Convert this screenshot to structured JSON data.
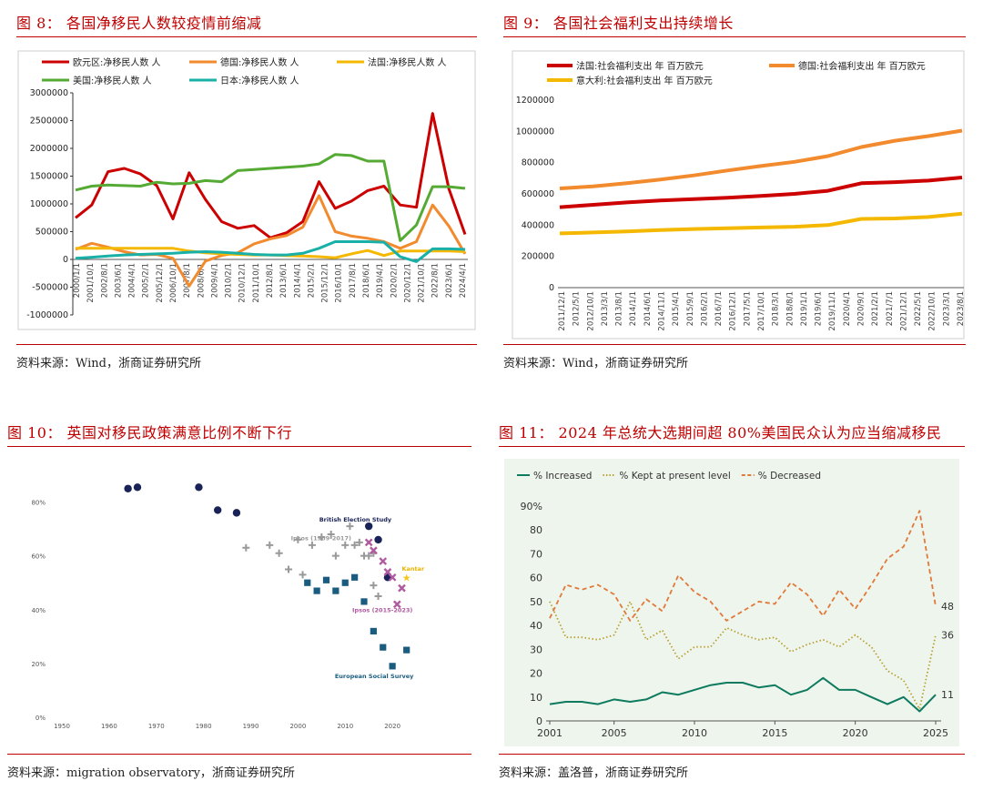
{
  "figure8": {
    "title": "图 8： 各国净移民人数较疫情前缩减",
    "source": "资料来源：Wind，浙商证券研究所",
    "chart_data": {
      "type": "line",
      "title": "",
      "ylim": [
        -1000000,
        3000000
      ],
      "y_ticks": [
        "3000000",
        "2500000",
        "2000000",
        "1500000",
        "1000000",
        "500000",
        "0",
        "-500000",
        "-1000000"
      ],
      "y_tick_values": [
        3000000,
        2500000,
        2000000,
        1500000,
        1000000,
        500000,
        0,
        -500000,
        -1000000
      ],
      "x_tick_labels": [
        "2000/1/1",
        "2001/10/1",
        "2002/8/1",
        "2003/6/1",
        "2004/4/1",
        "2005/2/1",
        "2005/12/1",
        "2006/10/1",
        "2007/8/1",
        "2008/6/1",
        "2009/4/1",
        "2010/2/1",
        "2010/12/1",
        "2011/10/1",
        "2012/8/1",
        "2013/6/1",
        "2014/4/1",
        "2015/2/1",
        "2015/12/1",
        "2016/10/1",
        "2017/8/1",
        "2018/6/1",
        "2019/4/1",
        "2020/2/1",
        "2020/12/1",
        "2021/10/1",
        "2022/8/1",
        "2023/6/1",
        "2024/4/1"
      ],
      "x": [
        2000,
        2001,
        2002,
        2003,
        2004,
        2005,
        2006,
        2007,
        2008,
        2009,
        2010,
        2011,
        2012,
        2013,
        2014,
        2015,
        2016,
        2017,
        2018,
        2019,
        2020,
        2021,
        2022,
        2023,
        2024
      ],
      "series": [
        {
          "name": "欧元区:净移民人数 人",
          "color": "#cc0000",
          "values": [
            750000,
            980000,
            1580000,
            1640000,
            1540000,
            1330000,
            730000,
            1560000,
            1080000,
            680000,
            560000,
            610000,
            390000,
            480000,
            680000,
            1400000,
            920000,
            1050000,
            1240000,
            1320000,
            980000,
            940000,
            2630000,
            1270000,
            450000
          ]
        },
        {
          "name": "德国:净移民人数 人",
          "color": "#f28a2e",
          "values": [
            180000,
            290000,
            220000,
            140000,
            80000,
            90000,
            20000,
            -480000,
            -30000,
            70000,
            120000,
            280000,
            370000,
            430000,
            580000,
            1150000,
            500000,
            420000,
            380000,
            320000,
            200000,
            320000,
            980000,
            600000,
            100000
          ]
        },
        {
          "name": "法国:净移民人数 人",
          "color": "#f5b800",
          "values": [
            200000,
            200000,
            200000,
            200000,
            200000,
            200000,
            200000,
            150000,
            120000,
            100000,
            90000,
            80000,
            80000,
            70000,
            60000,
            50000,
            30000,
            100000,
            160000,
            70000,
            150000,
            150000,
            150000,
            150000,
            140000
          ]
        },
        {
          "name": "美国:净移民人数 人",
          "color": "#55aa33",
          "values": [
            1250000,
            1320000,
            1340000,
            1330000,
            1320000,
            1390000,
            1360000,
            1370000,
            1420000,
            1400000,
            1600000,
            1620000,
            1640000,
            1660000,
            1680000,
            1720000,
            1890000,
            1870000,
            1770000,
            1770000,
            340000,
            620000,
            1310000,
            1310000,
            1280000
          ]
        },
        {
          "name": "日本:净移民人数 人",
          "color": "#19b0a8",
          "values": [
            20000,
            40000,
            60000,
            80000,
            90000,
            100000,
            110000,
            130000,
            140000,
            130000,
            110000,
            90000,
            80000,
            80000,
            110000,
            200000,
            320000,
            320000,
            320000,
            310000,
            50000,
            -40000,
            190000,
            190000,
            180000
          ]
        }
      ]
    }
  },
  "figure9": {
    "title": "图 9： 各国社会福利支出持续增长",
    "source": "资料来源：Wind，浙商证券研究所",
    "chart_data": {
      "type": "line",
      "ylim": [
        0,
        1200000
      ],
      "y_ticks": [
        "1200000",
        "1000000",
        "800000",
        "600000",
        "400000",
        "200000",
        "0"
      ],
      "y_tick_values": [
        1200000,
        1000000,
        800000,
        600000,
        400000,
        200000,
        0
      ],
      "x_tick_labels": [
        "2011/12/1",
        "2012/5/1",
        "2012/10/1",
        "2013/3/1",
        "2013/8/1",
        "2014/1/1",
        "2014/6/1",
        "2014/11/1",
        "2015/4/1",
        "2015/9/1",
        "2016/2/1",
        "2016/7/1",
        "2016/12/1",
        "2017/5/1",
        "2017/10/1",
        "2018/3/1",
        "2018/8/1",
        "2019/1/1",
        "2019/6/1",
        "2019/11/1",
        "2020/4/1",
        "2020/9/1",
        "2021/2/1",
        "2021/7/1",
        "2021/12/1",
        "2022/5/1",
        "2022/10/1",
        "2023/3/1",
        "2023/8/1"
      ],
      "x": [
        2012,
        2013,
        2014,
        2015,
        2016,
        2017,
        2018,
        2019,
        2020,
        2021,
        2022,
        2023,
        2024
      ],
      "series": [
        {
          "name": "法国:社会福利支出 年 百万欧元",
          "color": "#cc0000",
          "values": [
            515000,
            530000,
            545000,
            558000,
            567000,
            575000,
            587000,
            600000,
            620000,
            668000,
            675000,
            685000,
            705000
          ]
        },
        {
          "name": "德国:社会福利支出 年 百万欧元",
          "color": "#f28a2e",
          "values": [
            635000,
            648000,
            668000,
            692000,
            718000,
            750000,
            778000,
            805000,
            842000,
            900000,
            940000,
            970000,
            1005000
          ]
        },
        {
          "name": "意大利:社会福利支出 年 百万欧元",
          "color": "#f5b800",
          "values": [
            347000,
            353000,
            360000,
            368000,
            375000,
            380000,
            385000,
            390000,
            400000,
            440000,
            443000,
            452000,
            473000
          ]
        }
      ]
    }
  },
  "figure10": {
    "title": "图 10： 英国对移民政策满意比例不断下行",
    "source": "资料来源：migration observatory，浙商证券研究所",
    "chart_data": {
      "type": "scatter",
      "ylim": [
        0,
        90
      ],
      "xlim": [
        1950,
        2030
      ],
      "y_ticks": [
        "80%",
        "60%",
        "40%",
        "20%",
        "0%"
      ],
      "y_tick_values": [
        80,
        60,
        40,
        20,
        0
      ],
      "x_ticks": [
        "1950",
        "1960",
        "1970",
        "1980",
        "1990",
        "2000",
        "2010",
        "2020"
      ],
      "x_tick_values": [
        1950,
        1960,
        1970,
        1980,
        1990,
        2000,
        2010,
        2020
      ],
      "labels": {
        "bes": "British Election Study",
        "ipsos_old": "Ipsos (1989-2017)",
        "kantar": "Kantar",
        "ipsos_new": "Ipsos (2015-2023)",
        "ess": "European Social Survey"
      },
      "series": [
        {
          "name": "British Election Study",
          "color": "#1a2357",
          "marker": "circle",
          "points": [
            [
              1964,
              85
            ],
            [
              1966,
              85.5
            ],
            [
              1979,
              85.5
            ],
            [
              1983,
              77
            ],
            [
              1987,
              76
            ],
            [
              2015,
              71
            ],
            [
              2017,
              66
            ],
            [
              2019,
              52
            ]
          ]
        },
        {
          "name": "Ipsos (1989-2017)",
          "color": "#999999",
          "marker": "plus",
          "points": [
            [
              1989,
              63
            ],
            [
              1994,
              64
            ],
            [
              1996,
              61
            ],
            [
              1998,
              55
            ],
            [
              2000,
              66
            ],
            [
              2001,
              53
            ],
            [
              2003,
              64
            ],
            [
              2005,
              67
            ],
            [
              2007,
              68
            ],
            [
              2008,
              60
            ],
            [
              2010,
              64
            ],
            [
              2011,
              71
            ],
            [
              2012,
              64
            ],
            [
              2013,
              65
            ],
            [
              2014,
              60
            ],
            [
              2015,
              60
            ],
            [
              2016,
              61
            ],
            [
              2017,
              45
            ],
            [
              2016,
              49
            ]
          ]
        },
        {
          "name": "Kantar",
          "color": "#f5c518",
          "marker": "star",
          "points": [
            [
              2023,
              52
            ]
          ]
        },
        {
          "name": "Ipsos (2015-2023)",
          "color": "#b05aa0",
          "marker": "x",
          "points": [
            [
              2015,
              65
            ],
            [
              2016,
              62
            ],
            [
              2018,
              58
            ],
            [
              2019,
              54
            ],
            [
              2020,
              52
            ],
            [
              2021,
              42
            ],
            [
              2022,
              48
            ]
          ]
        },
        {
          "name": "European Social Survey",
          "color": "#1a5c80",
          "marker": "square",
          "points": [
            [
              2002,
              50
            ],
            [
              2004,
              47
            ],
            [
              2006,
              51
            ],
            [
              2008,
              47
            ],
            [
              2010,
              50
            ],
            [
              2012,
              52
            ],
            [
              2014,
              43
            ],
            [
              2016,
              32
            ],
            [
              2018,
              26
            ],
            [
              2020,
              19
            ],
            [
              2023,
              25
            ]
          ]
        }
      ]
    }
  },
  "figure11": {
    "title": "图 11： 2024 年总统大选期间超 80%美国民众认为应当缩减移民",
    "source": "资料来源：盖洛普，浙商证券研究所",
    "chart_data": {
      "type": "line",
      "ylim": [
        0,
        90
      ],
      "xlim": [
        2001,
        2025
      ],
      "y_ticks": [
        "90%",
        "80",
        "70",
        "60",
        "50",
        "40",
        "30",
        "20",
        "10",
        "0"
      ],
      "y_tick_values": [
        90,
        80,
        70,
        60,
        50,
        40,
        30,
        20,
        10,
        0
      ],
      "x_ticks": [
        "2001",
        "2005",
        "2010",
        "2015",
        "2020",
        "2025"
      ],
      "x_tick_values": [
        2001,
        2005,
        2010,
        2015,
        2020,
        2025
      ],
      "end_labels": [
        "48",
        "36",
        "11"
      ],
      "series": [
        {
          "name": "% Increased",
          "color": "#0e7a5f",
          "style": "solid",
          "points": [
            [
              2001,
              7
            ],
            [
              2002,
              8
            ],
            [
              2003,
              8
            ],
            [
              2004,
              7
            ],
            [
              2005,
              9
            ],
            [
              2006,
              8
            ],
            [
              2007,
              9
            ],
            [
              2008,
              12
            ],
            [
              2009,
              11
            ],
            [
              2010,
              13
            ],
            [
              2011,
              15
            ],
            [
              2012,
              16
            ],
            [
              2013,
              16
            ],
            [
              2014,
              14
            ],
            [
              2015,
              15
            ],
            [
              2016,
              11
            ],
            [
              2017,
              13
            ],
            [
              2018,
              18
            ],
            [
              2019,
              13
            ],
            [
              2020,
              13
            ],
            [
              2021,
              10
            ],
            [
              2022,
              7
            ],
            [
              2023,
              10
            ],
            [
              2024,
              4
            ],
            [
              2025,
              11
            ]
          ]
        },
        {
          "name": "% Kept at present level",
          "color": "#b8a133",
          "style": "dotted",
          "points": [
            [
              2001,
              50
            ],
            [
              2002,
              35
            ],
            [
              2003,
              35
            ],
            [
              2004,
              34
            ],
            [
              2005,
              36
            ],
            [
              2006,
              50
            ],
            [
              2007,
              34
            ],
            [
              2008,
              38
            ],
            [
              2009,
              26
            ],
            [
              2010,
              31
            ],
            [
              2011,
              31
            ],
            [
              2012,
              39
            ],
            [
              2013,
              36
            ],
            [
              2014,
              34
            ],
            [
              2015,
              35
            ],
            [
              2016,
              29
            ],
            [
              2017,
              32
            ],
            [
              2018,
              34
            ],
            [
              2019,
              31
            ],
            [
              2020,
              36
            ],
            [
              2021,
              31
            ],
            [
              2022,
              21
            ],
            [
              2023,
              17
            ],
            [
              2024,
              5
            ],
            [
              2025,
              36
            ]
          ]
        },
        {
          "name": "% Decreased",
          "color": "#e0793a",
          "style": "dashed",
          "points": [
            [
              2001,
              43
            ],
            [
              2002,
              57
            ],
            [
              2003,
              55
            ],
            [
              2004,
              57
            ],
            [
              2005,
              53
            ],
            [
              2006,
              42
            ],
            [
              2007,
              51
            ],
            [
              2008,
              46
            ],
            [
              2009,
              61
            ],
            [
              2010,
              54
            ],
            [
              2011,
              50
            ],
            [
              2012,
              42
            ],
            [
              2013,
              46
            ],
            [
              2014,
              50
            ],
            [
              2015,
              49
            ],
            [
              2016,
              58
            ],
            [
              2017,
              53
            ],
            [
              2018,
              44
            ],
            [
              2019,
              55
            ],
            [
              2020,
              47
            ],
            [
              2021,
              57
            ],
            [
              2022,
              68
            ],
            [
              2023,
              73
            ],
            [
              2024,
              88
            ],
            [
              2025,
              48
            ]
          ]
        }
      ]
    }
  }
}
